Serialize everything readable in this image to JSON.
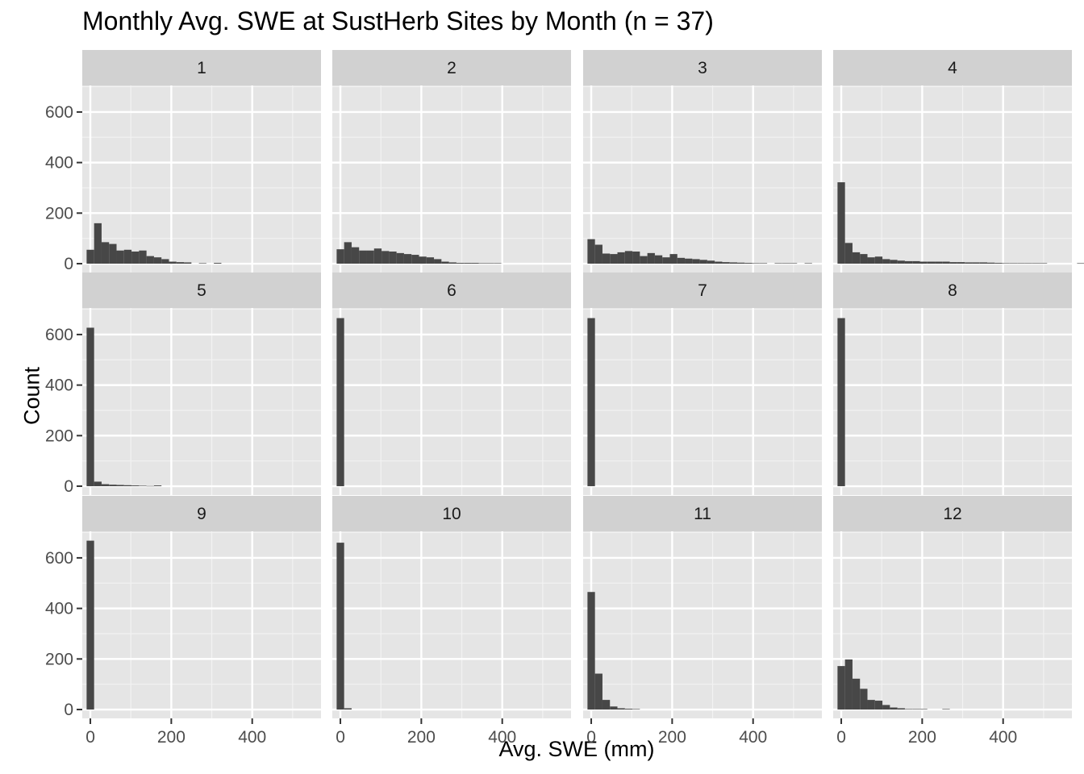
{
  "chart_data": {
    "type": "bar",
    "title": "Monthly Avg. SWE at SustHerb Sites by Month (n = 37)",
    "xlabel": "Avg. SWE (mm)",
    "ylabel": "Count",
    "xlim": [
      -20,
      570
    ],
    "ylim": [
      -35,
      705
    ],
    "x_ticks": [
      0,
      200,
      400
    ],
    "y_ticks": [
      0,
      200,
      400,
      600
    ],
    "bin_width": 18.5,
    "bin_start": -9.25,
    "grid": true,
    "facet_layout": "3 rows x 4 columns",
    "bar_color": "#474747",
    "panel_color": "#e5e5e5",
    "strip_color": "#d1d1d1",
    "facets": [
      {
        "label": "1",
        "counts": [
          55,
          160,
          85,
          78,
          52,
          55,
          48,
          52,
          30,
          25,
          18,
          8,
          6,
          5,
          0,
          2,
          0,
          3
        ]
      },
      {
        "label": "2",
        "counts": [
          57,
          85,
          65,
          52,
          52,
          60,
          50,
          48,
          42,
          38,
          35,
          28,
          25,
          18,
          8,
          5,
          3,
          3,
          3,
          2,
          2,
          2
        ]
      },
      {
        "label": "3",
        "counts": [
          97,
          75,
          40,
          38,
          45,
          50,
          48,
          30,
          42,
          33,
          25,
          38,
          23,
          20,
          18,
          15,
          12,
          8,
          6,
          5,
          4,
          3,
          2,
          2,
          0,
          2,
          2,
          2,
          0,
          2
        ]
      },
      {
        "label": "4",
        "counts": [
          322,
          82,
          45,
          38,
          25,
          28,
          18,
          15,
          12,
          10,
          10,
          8,
          8,
          8,
          8,
          6,
          6,
          5,
          5,
          5,
          4,
          3,
          2,
          2,
          2,
          2,
          2,
          2,
          0,
          0,
          0,
          0,
          2,
          0,
          0,
          2
        ]
      },
      {
        "label": "5",
        "counts": [
          627,
          18,
          8,
          6,
          5,
          4,
          3,
          2,
          1,
          3
        ]
      },
      {
        "label": "6",
        "counts": [
          665
        ]
      },
      {
        "label": "7",
        "counts": [
          665
        ]
      },
      {
        "label": "8",
        "counts": [
          665
        ]
      },
      {
        "label": "9",
        "counts": [
          668
        ]
      },
      {
        "label": "10",
        "counts": [
          660,
          5
        ]
      },
      {
        "label": "11",
        "counts": [
          465,
          142,
          38,
          12,
          5,
          3,
          2
        ]
      },
      {
        "label": "12",
        "counts": [
          172,
          198,
          122,
          82,
          38,
          35,
          18,
          8,
          5,
          2,
          2,
          2,
          0,
          0,
          2
        ]
      }
    ]
  }
}
